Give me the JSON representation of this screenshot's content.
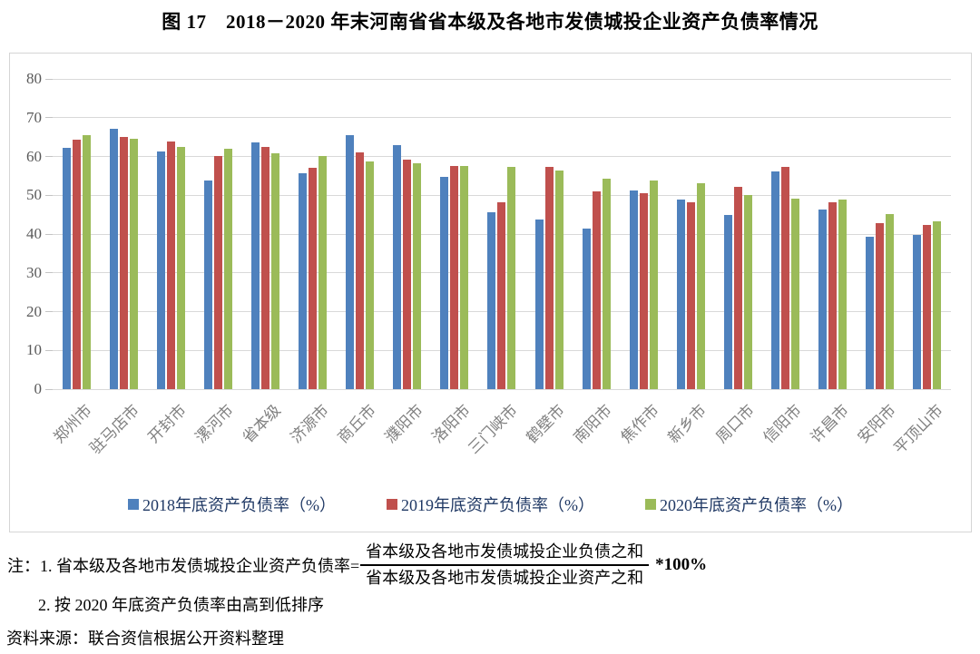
{
  "figure": {
    "title": "图 17　2018－2020 年末河南省省本级及各地市发债城投企业资产负债率情况"
  },
  "chart_data": {
    "type": "bar",
    "title": "图 17　2018－2020 年末河南省省本级及各地市发债城投企业资产负债率情况",
    "categories": [
      "郑州市",
      "驻马店市",
      "开封市",
      "漯河市",
      "省本级",
      "济源市",
      "商丘市",
      "濮阳市",
      "洛阳市",
      "三门峡市",
      "鹤壁市",
      "南阳市",
      "焦作市",
      "新乡市",
      "周口市",
      "信阳市",
      "许昌市",
      "安阳市",
      "平顶山市"
    ],
    "series": [
      {
        "name": "2018年底资产负债率（%）",
        "color": "#4F81BD",
        "values": [
          62.3,
          67.2,
          61.2,
          53.9,
          63.7,
          55.7,
          65.6,
          63.0,
          54.7,
          45.7,
          43.8,
          41.5,
          51.3,
          48.9,
          44.8,
          56.1,
          46.4,
          39.3,
          39.8
        ]
      },
      {
        "name": "2019年底资产负债率（%）",
        "color": "#C0504D",
        "values": [
          64.3,
          65.1,
          63.9,
          60.2,
          62.5,
          57.1,
          61.1,
          59.3,
          57.6,
          48.2,
          57.4,
          51.0,
          50.5,
          48.2,
          52.2,
          57.4,
          48.1,
          42.7,
          42.4
        ]
      },
      {
        "name": "2020年底资产负债率（%）",
        "color": "#9BBB59",
        "values": [
          65.4,
          64.5,
          62.4,
          61.9,
          60.9,
          60.2,
          58.7,
          58.2,
          57.5,
          57.3,
          56.4,
          54.3,
          53.9,
          53.2,
          50.1,
          49.1,
          48.9,
          45.1,
          43.3
        ]
      }
    ],
    "xlabel": "",
    "ylabel": "",
    "ylim": [
      0,
      80
    ],
    "ytick_interval": 10,
    "yticks": [
      0,
      10,
      20,
      30,
      40,
      50,
      60,
      70,
      80
    ],
    "grid": "horizontal",
    "legend_position": "bottom",
    "x_label_rotation_deg": 45
  },
  "notes": {
    "line1_prefix": "注：1. 省本级及各地市发债城投企业资产负债率=",
    "fraction_numerator": "省本级及各地市发债城投企业负债之和",
    "fraction_denominator": "省本级及各地市发债城投企业资产之和",
    "line1_suffix": "*100%",
    "line2": "2. 按 2020 年底资产负债率由高到低排序",
    "source": "资料来源：联合资信根据公开资料整理"
  },
  "style": {
    "series_colors": [
      "#4F81BD",
      "#C0504D",
      "#9BBB59"
    ],
    "gridline_color": "#D9D9D9",
    "axis_label_color": "#595959",
    "category_label_color": "#808080",
    "legend_text_color": "#1F3864"
  }
}
